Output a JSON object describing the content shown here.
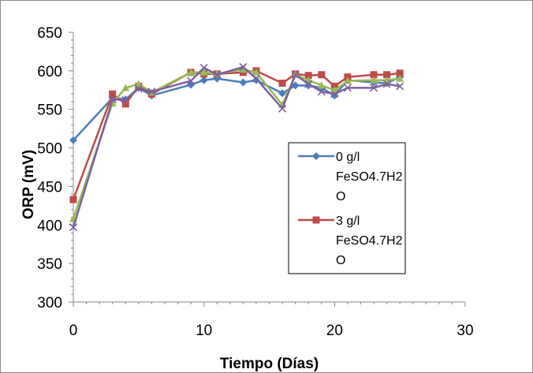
{
  "chart_data": {
    "type": "line",
    "title": "",
    "xlabel": "Tiempo (Días)",
    "ylabel": "ORP (mV)",
    "xlim": [
      0,
      30
    ],
    "ylim": [
      300,
      650
    ],
    "x_ticks": [
      "0",
      "10",
      "20",
      "30"
    ],
    "y_ticks": [
      "300",
      "350",
      "400",
      "450",
      "500",
      "550",
      "600",
      "650"
    ],
    "grid": false,
    "legend_position": "center-right",
    "series": [
      {
        "name": "0 g/l FeSO4.7H2O",
        "color": "#4a7ebb",
        "marker": "diamond",
        "x": [
          0,
          3,
          4,
          5,
          6,
          9,
          10,
          11,
          13,
          14,
          16,
          17,
          18,
          19,
          20,
          21,
          23,
          24,
          25
        ],
        "y": [
          510,
          565,
          563,
          578,
          568,
          582,
          588,
          590,
          585,
          588,
          571,
          581,
          581,
          578,
          568,
          588,
          585,
          584,
          592
        ]
      },
      {
        "name": "3 g/l FeSO4.7H2O",
        "color": "#be4b48",
        "marker": "square",
        "x": [
          0,
          3,
          4,
          5,
          6,
          9,
          10,
          11,
          13,
          14,
          16,
          17,
          18,
          19,
          20,
          21,
          23,
          24,
          25
        ],
        "y": [
          433,
          570,
          557,
          580,
          570,
          598,
          596,
          596,
          598,
          600,
          584,
          596,
          594,
          595,
          580,
          592,
          595,
          595,
          597
        ]
      },
      {
        "name": "",
        "color": "#98b954",
        "marker": "triangle",
        "x": [
          0,
          3,
          4,
          5,
          6,
          9,
          10,
          11,
          13,
          14,
          16,
          17,
          18,
          19,
          20,
          21,
          23,
          24,
          25
        ],
        "y": [
          408,
          558,
          578,
          583,
          572,
          598,
          598,
          596,
          602,
          598,
          556,
          595,
          588,
          581,
          575,
          587,
          588,
          588,
          590
        ]
      },
      {
        "name": "",
        "color": "#7d60a0",
        "marker": "x",
        "x": [
          0,
          3,
          4,
          5,
          6,
          9,
          10,
          11,
          13,
          14,
          16,
          17,
          18,
          19,
          20,
          21,
          23,
          24,
          25
        ],
        "y": [
          397,
          563,
          562,
          577,
          573,
          587,
          604,
          595,
          605,
          590,
          551,
          595,
          583,
          573,
          570,
          578,
          578,
          583,
          580
        ]
      }
    ],
    "legend": {
      "entries": [
        {
          "lines": [
            "0 g/l",
            "FeSO4.7H2",
            "O"
          ],
          "series_index": 0
        },
        {
          "lines": [
            "3 g/l",
            "FeSO4.7H2",
            "O"
          ],
          "series_index": 1
        }
      ]
    }
  }
}
